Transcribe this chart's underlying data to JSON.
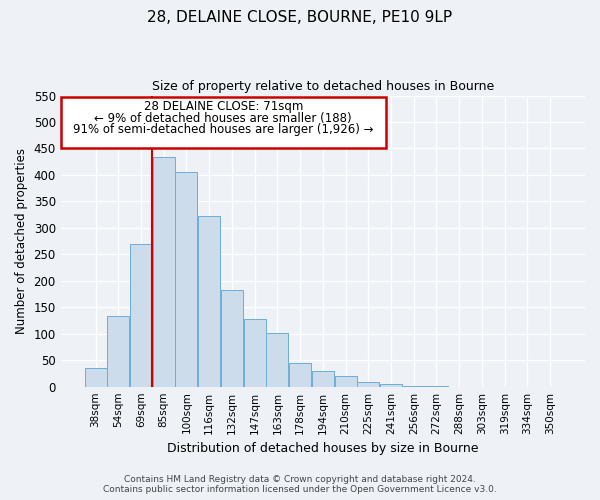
{
  "title1": "28, DELAINE CLOSE, BOURNE, PE10 9LP",
  "title2": "Size of property relative to detached houses in Bourne",
  "xlabel": "Distribution of detached houses by size in Bourne",
  "ylabel": "Number of detached properties",
  "categories": [
    "38sqm",
    "54sqm",
    "69sqm",
    "85sqm",
    "100sqm",
    "116sqm",
    "132sqm",
    "147sqm",
    "163sqm",
    "178sqm",
    "194sqm",
    "210sqm",
    "225sqm",
    "241sqm",
    "256sqm",
    "272sqm",
    "288sqm",
    "303sqm",
    "319sqm",
    "334sqm",
    "350sqm"
  ],
  "bar_values": [
    35,
    133,
    270,
    433,
    405,
    322,
    183,
    127,
    102,
    45,
    30,
    20,
    8,
    5,
    2,
    1,
    0,
    0,
    0,
    0,
    0
  ],
  "bar_color": "#cddceb",
  "bar_edge_color": "#6aaed6",
  "vline_color": "#cc0000",
  "ylim": [
    0,
    550
  ],
  "yticks": [
    0,
    50,
    100,
    150,
    200,
    250,
    300,
    350,
    400,
    450,
    500,
    550
  ],
  "annotation_title": "28 DELAINE CLOSE: 71sqm",
  "annotation_line1": "← 9% of detached houses are smaller (188)",
  "annotation_line2": "91% of semi-detached houses are larger (1,926) →",
  "box_color": "#cc0000",
  "footer1": "Contains HM Land Registry data © Crown copyright and database right 2024.",
  "footer2": "Contains public sector information licensed under the Open Government Licence v3.0.",
  "bg_color": "#eef2f7",
  "grid_color": "#ffffff"
}
